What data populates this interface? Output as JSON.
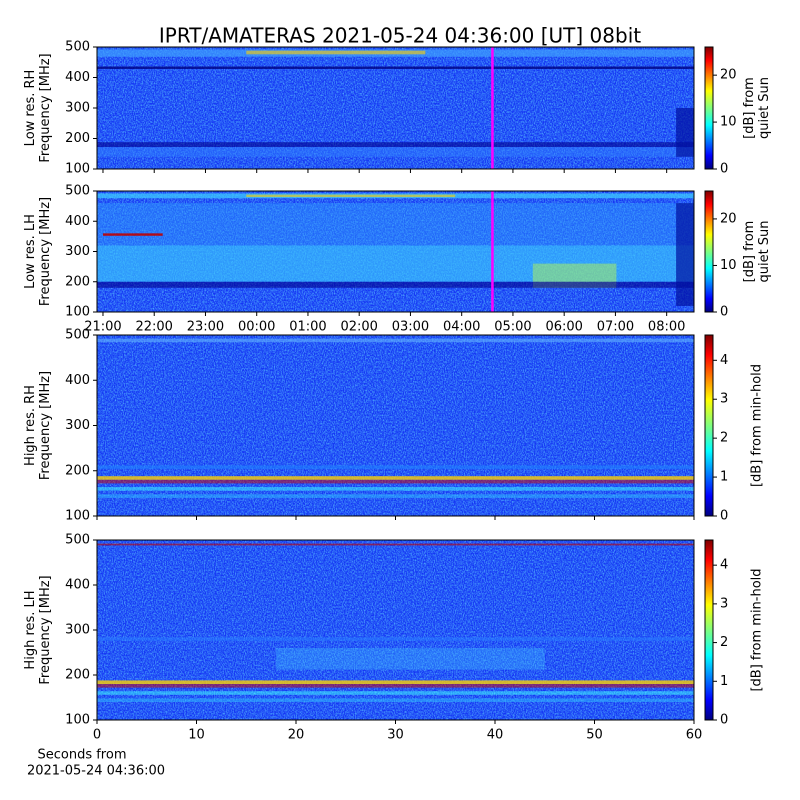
{
  "title": "IPRT/AMATERAS 2021-05-24 04:36:00 [UT]   08bit",
  "chart_data": [
    {
      "type": "heatmap",
      "ylabel": [
        "Low res. RH",
        "Frequency [MHz]"
      ],
      "xlim": [
        "2021-05-23T20:53",
        "2021-05-24T08:32"
      ],
      "xticks": [
        {
          "value": "2021-05-23T21:00",
          "label": "21:00"
        },
        {
          "value": "2021-05-23T22:00",
          "label": "22:00"
        },
        {
          "value": "2021-05-23T23:00",
          "label": "23:00"
        },
        {
          "value": "2021-05-24T00:00",
          "label": "00:00"
        },
        {
          "value": "2021-05-24T01:00",
          "label": "01:00"
        },
        {
          "value": "2021-05-24T02:00",
          "label": "02:00"
        },
        {
          "value": "2021-05-24T03:00",
          "label": "03:00"
        },
        {
          "value": "2021-05-24T04:00",
          "label": "04:00"
        },
        {
          "value": "2021-05-24T05:00",
          "label": "05:00"
        },
        {
          "value": "2021-05-24T06:00",
          "label": "06:00"
        },
        {
          "value": "2021-05-24T07:00",
          "label": "07:00"
        },
        {
          "value": "2021-05-24T08:00",
          "label": "08:00"
        }
      ],
      "show_xtick_labels": false,
      "ylim": [
        100,
        500
      ],
      "yticks": [
        100,
        200,
        300,
        400,
        500
      ],
      "marker_time": "2021-05-24T04:36",
      "marker_color": "#ff00ff",
      "colorbar_label": [
        "[dB] from",
        "quiet Sun"
      ],
      "clim": [
        0,
        26
      ],
      "cticks": [
        0,
        10,
        20
      ]
    },
    {
      "type": "heatmap",
      "ylabel": [
        "Low res. LH",
        "Frequency [MHz]"
      ],
      "xlim": [
        "2021-05-23T20:53",
        "2021-05-24T08:32"
      ],
      "xticks": [
        {
          "value": "2021-05-23T21:00",
          "label": "21:00"
        },
        {
          "value": "2021-05-23T22:00",
          "label": "22:00"
        },
        {
          "value": "2021-05-23T23:00",
          "label": "23:00"
        },
        {
          "value": "2021-05-24T00:00",
          "label": "00:00"
        },
        {
          "value": "2021-05-24T01:00",
          "label": "01:00"
        },
        {
          "value": "2021-05-24T02:00",
          "label": "02:00"
        },
        {
          "value": "2021-05-24T03:00",
          "label": "03:00"
        },
        {
          "value": "2021-05-24T04:00",
          "label": "04:00"
        },
        {
          "value": "2021-05-24T05:00",
          "label": "05:00"
        },
        {
          "value": "2021-05-24T06:00",
          "label": "06:00"
        },
        {
          "value": "2021-05-24T07:00",
          "label": "07:00"
        },
        {
          "value": "2021-05-24T08:00",
          "label": "08:00"
        }
      ],
      "show_xtick_labels": true,
      "ylim": [
        100,
        500
      ],
      "yticks": [
        100,
        200,
        300,
        400,
        500
      ],
      "marker_time": "2021-05-24T04:36",
      "marker_color": "#ff00ff",
      "colorbar_label": [
        "[dB] from",
        "quiet Sun"
      ],
      "clim": [
        0,
        26
      ],
      "cticks": [
        0,
        10,
        20
      ]
    },
    {
      "type": "heatmap",
      "ylabel": [
        "High res. RH",
        "Frequency [MHz]"
      ],
      "xlim": [
        0,
        60
      ],
      "xticks": [
        0,
        10,
        20,
        30,
        40,
        50,
        60
      ],
      "show_xtick_labels": false,
      "ylim": [
        100,
        500
      ],
      "yticks": [
        100,
        200,
        300,
        400,
        500
      ],
      "colorbar_label": [
        "[dB] from min-hold"
      ],
      "clim": [
        0,
        4.65
      ],
      "cticks": [
        0,
        1,
        2,
        3,
        4
      ]
    },
    {
      "type": "heatmap",
      "ylabel": [
        "High res. LH",
        "Frequency [MHz]"
      ],
      "xlim": [
        0,
        60
      ],
      "xticks": [
        0,
        10,
        20,
        30,
        40,
        50,
        60
      ],
      "show_xtick_labels": true,
      "xlabel": [
        "Seconds from",
        "2021-05-24 04:36:00"
      ],
      "ylim": [
        100,
        500
      ],
      "yticks": [
        100,
        200,
        300,
        400,
        500
      ],
      "colorbar_label": [
        "[dB] from min-hold"
      ],
      "clim": [
        0,
        4.65
      ],
      "cticks": [
        0,
        1,
        2,
        3,
        4
      ]
    }
  ]
}
